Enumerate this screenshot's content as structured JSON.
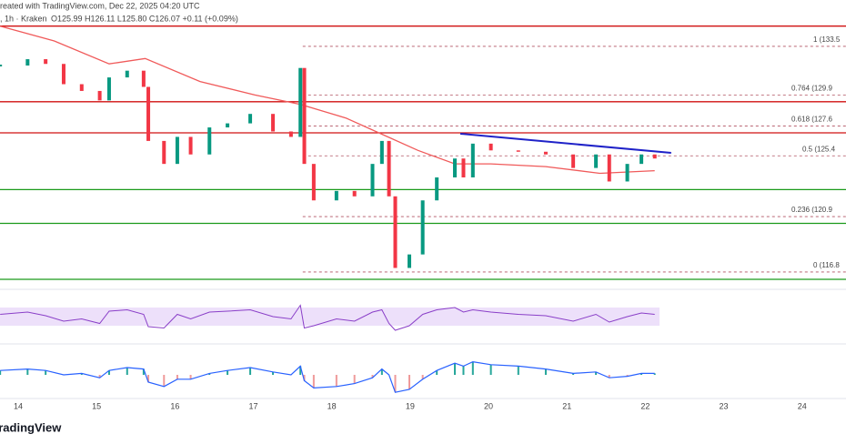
{
  "chart_data": {
    "type": "candlestick",
    "header": "reated with TradingView.com, Dec 22, 2025 04:20 UTC",
    "symbol": ", 1h · Kraken",
    "ohlc": "O125.99 H126.11 L125.80 C126.07 +0.11 (+0.09%)",
    "brand": "TradingView",
    "x": [
      13.77,
      14.12,
      14.35,
      14.58,
      14.81,
      15.04,
      15.16,
      15.39,
      15.6,
      15.66,
      15.86,
      16.03,
      16.2,
      16.44,
      16.67,
      16.96,
      17.25,
      17.48,
      17.6,
      17.65,
      17.77,
      18.06,
      18.29,
      18.52,
      18.64,
      18.73,
      18.81,
      18.99,
      19.16,
      19.34,
      19.57,
      19.68,
      19.8,
      20.03,
      20.38,
      20.73,
      21.08,
      21.37,
      21.54,
      21.77,
      21.95,
      22.12
    ],
    "closes": [
      132.08,
      132.55,
      132.2,
      130.7,
      130.2,
      129.5,
      131.2,
      131.7,
      130.5,
      126.5,
      124.8,
      126.8,
      125.5,
      127.5,
      127.8,
      128.5,
      127.2,
      126.8,
      131.9,
      124.8,
      122.1,
      122.8,
      122.4,
      124.8,
      126.5,
      122.4,
      117.1,
      118.1,
      122.1,
      123.8,
      125.2,
      123.8,
      126.3,
      125.8,
      125.7,
      125.5,
      124.5,
      125.5,
      123.5,
      124.8,
      125.5,
      125.2
    ],
    "up_color": "#089981",
    "down_color": "#f23645",
    "ma": {
      "color": "#f05a5a",
      "x": [
        13.77,
        14.46,
        15.16,
        15.62,
        16.32,
        17.02,
        17.6,
        18.18,
        18.64,
        19.1,
        19.57,
        20.03,
        20.73,
        21.42,
        22.12
      ],
      "values": [
        135.0,
        133.9,
        132.2,
        132.6,
        130.9,
        129.9,
        129.2,
        128.2,
        127.0,
        125.8,
        124.8,
        124.8,
        124.6,
        124.1,
        124.3
      ]
    },
    "trendline": {
      "color": "#1f22c8",
      "x": [
        19.64,
        22.33
      ],
      "values": [
        127.03,
        125.62
      ]
    },
    "fib": {
      "color": "#b05060",
      "start": 17.63,
      "levels": [
        {
          "value": 133.5,
          "label": "1 (133.5"
        },
        {
          "value": 129.9,
          "label": "0.764 (129.9"
        },
        {
          "value": 127.6,
          "label": "0.618 (127.6"
        },
        {
          "value": 125.4,
          "label": "0.5 (125.4"
        },
        {
          "value": 120.9,
          "label": "0.236 (120.9"
        },
        {
          "value": 116.8,
          "label": "0 (116.8"
        }
      ]
    },
    "resistance": {
      "color": "#d01010",
      "values": [
        135.0,
        129.4,
        127.1
      ]
    },
    "support": {
      "color": "#1a9a1a",
      "values": [
        122.9,
        120.4,
        116.26
      ]
    },
    "xlim": [
      13.768,
      24.56
    ],
    "ylim": [
      115.72,
      136.93
    ],
    "xticks": [
      14,
      15,
      16,
      17,
      18,
      19,
      20,
      21,
      22,
      23,
      24
    ],
    "rsi": {
      "color": "#8a3fc8",
      "ylim": [
        0,
        100
      ],
      "band": [
        30,
        70
      ],
      "values": [
        55,
        60,
        52,
        40,
        45,
        35,
        62,
        65,
        55,
        28,
        25,
        55,
        45,
        60,
        62,
        65,
        50,
        45,
        75,
        25,
        30,
        45,
        40,
        60,
        65,
        35,
        20,
        30,
        55,
        65,
        70,
        60,
        65,
        60,
        55,
        52,
        40,
        55,
        38,
        50,
        58,
        55
      ]
    },
    "macd": {
      "color": "#2962ff",
      "ylim": [
        -1.5,
        1.5
      ],
      "values": [
        0.3,
        0.4,
        0.3,
        0,
        0.1,
        -0.2,
        0.3,
        0.5,
        0.4,
        -0.5,
        -0.8,
        -0.3,
        -0.3,
        0.1,
        0.3,
        0.5,
        0.2,
        0,
        0.6,
        -0.4,
        -0.9,
        -0.8,
        -0.6,
        -0.2,
        0.4,
        0,
        -1.2,
        -1.0,
        -0.3,
        0.3,
        0.8,
        0.6,
        0.9,
        0.7,
        0.6,
        0.4,
        0.1,
        0.2,
        -0.2,
        -0.1,
        0.1,
        0.1
      ]
    }
  }
}
